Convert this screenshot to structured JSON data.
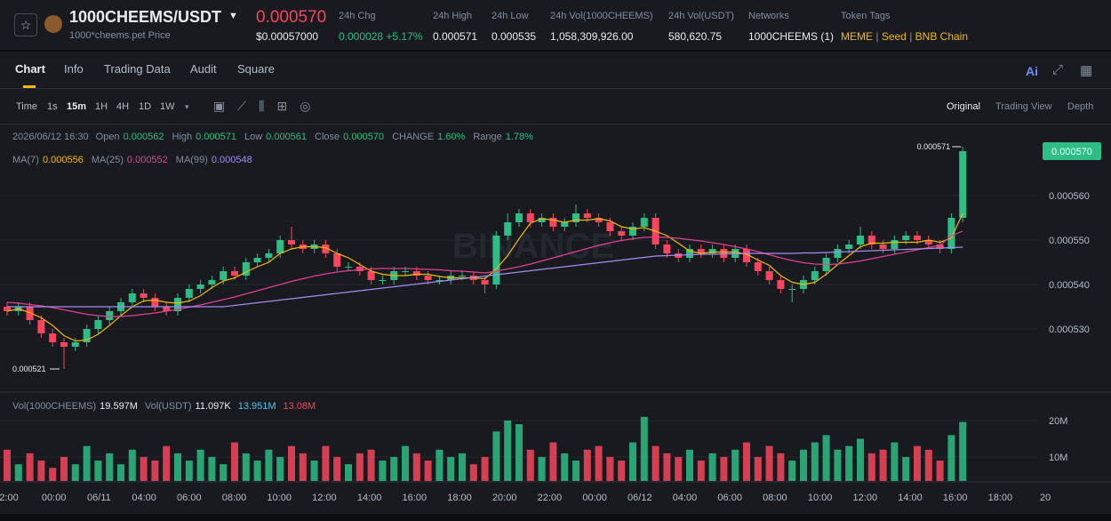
{
  "header": {
    "symbol": "1000CHEEMS/USDT",
    "price": "0.000570",
    "price_usd": "$0.00057000",
    "subtitle": "1000*cheems.pet Price",
    "stats": [
      {
        "label": "24h Chg",
        "value": "0.000028 +5.17%"
      },
      {
        "label": "24h High",
        "value": "0.000571"
      },
      {
        "label": "24h Low",
        "value": "0.000535"
      },
      {
        "label": "24h Vol(1000CHEEMS)",
        "value": "1,058,309,926.00"
      },
      {
        "label": "24h Vol(USDT)",
        "value": "580,620.75"
      },
      {
        "label": "Networks",
        "value": "1000CHEEMS (1)"
      }
    ],
    "token_tags": {
      "label": "Token Tags",
      "tags": [
        "MEME",
        "Seed",
        "BNB Chain"
      ]
    }
  },
  "tabs": [
    "Chart",
    "Info",
    "Trading Data",
    "Audit",
    "Square"
  ],
  "ai": "Ai",
  "toolbar": {
    "intervals": [
      "Time",
      "1s",
      "15m",
      "1H",
      "4H",
      "1D",
      "1W"
    ],
    "views": [
      "Original",
      "Trading View",
      "Depth"
    ]
  },
  "chart_data": [
    {
      "type": "candlestick",
      "watermark": "BINANCE",
      "info": {
        "date": "2026/06/12 16:30",
        "fields": [
          {
            "label": "Open",
            "value": "0.000562"
          },
          {
            "label": "High",
            "value": "0.000571"
          },
          {
            "label": "Low",
            "value": "0.000561"
          },
          {
            "label": "Close",
            "value": "0.000570"
          },
          {
            "label": "CHANGE",
            "value": "1.60%"
          },
          {
            "label": "Range",
            "value": "1.78%"
          }
        ]
      },
      "up_color": "#2ebd85",
      "down_color": "#f6465d",
      "open": [
        0.000535,
        0.000534,
        0.000535,
        0.000532,
        0.000529,
        0.000527,
        0.000526,
        0.000527,
        0.00053,
        0.000532,
        0.000534,
        0.000536,
        0.000538,
        0.000537,
        0.000535,
        0.000534,
        0.000537,
        0.000539,
        0.00054,
        0.000541,
        0.000543,
        0.000542,
        0.000545,
        0.000546,
        0.000547,
        0.00055,
        0.000549,
        0.000548,
        0.000549,
        0.000547,
        0.000544,
        0.000544,
        0.000543,
        0.000541,
        0.000541,
        0.000543,
        0.000543,
        0.000542,
        0.000541,
        0.000541,
        0.000542,
        0.000542,
        0.000541,
        0.00054,
        0.000551,
        0.000554,
        0.000556,
        0.000554,
        0.000555,
        0.000553,
        0.000554,
        0.000556,
        0.000555,
        0.000554,
        0.000552,
        0.000551,
        0.000553,
        0.000555,
        0.000549,
        0.000547,
        0.000546,
        0.000548,
        0.000547,
        0.000548,
        0.000546,
        0.000548,
        0.000545,
        0.000543,
        0.000541,
        0.000539,
        0.000539,
        0.000541,
        0.000543,
        0.000546,
        0.000548,
        0.000549,
        0.000551,
        0.000549,
        0.000548,
        0.00055,
        0.000551,
        0.00055,
        0.000549,
        0.000548,
        0.000555
      ],
      "high": [
        0.000536,
        0.000536,
        0.000536,
        0.000533,
        0.00053,
        0.000528,
        0.000528,
        0.000531,
        0.000533,
        0.000535,
        0.000537,
        0.000539,
        0.000539,
        0.000538,
        0.000536,
        0.000538,
        0.00054,
        0.000541,
        0.000542,
        0.000544,
        0.000544,
        0.000546,
        0.000547,
        0.000548,
        0.000551,
        0.000553,
        0.00055,
        0.00055,
        0.00055,
        0.000548,
        0.000545,
        0.000545,
        0.000544,
        0.000542,
        0.000544,
        0.000544,
        0.000544,
        0.000543,
        0.000542,
        0.000543,
        0.000543,
        0.000543,
        0.000542,
        0.000552,
        0.000556,
        0.000557,
        0.000557,
        0.000556,
        0.000556,
        0.000555,
        0.000558,
        0.000557,
        0.000556,
        0.000555,
        0.000553,
        0.000554,
        0.000556,
        0.000556,
        0.00055,
        0.000548,
        0.000549,
        0.000549,
        0.000549,
        0.000549,
        0.000549,
        0.000549,
        0.000546,
        0.000544,
        0.000542,
        0.00054,
        0.000542,
        0.000544,
        0.000547,
        0.000549,
        0.00055,
        0.000553,
        0.000552,
        0.00055,
        0.000551,
        0.000552,
        0.000552,
        0.000551,
        0.00055,
        0.000556,
        0.000571
      ],
      "low": [
        0.000533,
        0.000533,
        0.000531,
        0.000528,
        0.000526,
        0.000521,
        0.000525,
        0.000526,
        0.000529,
        0.000531,
        0.000533,
        0.000535,
        0.000536,
        0.000534,
        0.000533,
        0.000533,
        0.000536,
        0.000538,
        0.000539,
        0.00054,
        0.000541,
        0.000541,
        0.000544,
        0.000545,
        0.000546,
        0.000548,
        0.000547,
        0.000547,
        0.000546,
        0.000543,
        0.000543,
        0.000542,
        0.00054,
        0.00054,
        0.00054,
        0.000542,
        0.000541,
        0.00054,
        0.00054,
        0.00054,
        0.000541,
        0.00054,
        0.000538,
        0.000539,
        0.00055,
        0.000553,
        0.000553,
        0.000553,
        0.000552,
        0.000552,
        0.000553,
        0.000554,
        0.000553,
        0.000551,
        0.00055,
        0.00055,
        0.000552,
        0.000548,
        0.000546,
        0.000545,
        0.000545,
        0.000546,
        0.000546,
        0.000545,
        0.000545,
        0.000544,
        0.000542,
        0.00054,
        0.000538,
        0.000536,
        0.000538,
        0.00054,
        0.000542,
        0.000545,
        0.000547,
        0.000548,
        0.000548,
        0.000547,
        0.000547,
        0.000549,
        0.000549,
        0.000548,
        0.000547,
        0.000547,
        0.000554
      ],
      "close": [
        0.000534,
        0.000535,
        0.000532,
        0.000529,
        0.000527,
        0.000526,
        0.000527,
        0.00053,
        0.000532,
        0.000534,
        0.000536,
        0.000538,
        0.000537,
        0.000535,
        0.000534,
        0.000537,
        0.000539,
        0.00054,
        0.000541,
        0.000543,
        0.000542,
        0.000545,
        0.000546,
        0.000547,
        0.00055,
        0.000549,
        0.000548,
        0.000549,
        0.000547,
        0.000544,
        0.000544,
        0.000543,
        0.000541,
        0.000541,
        0.000543,
        0.000543,
        0.000542,
        0.000541,
        0.000541,
        0.000542,
        0.000542,
        0.000541,
        0.00054,
        0.000551,
        0.000554,
        0.000556,
        0.000554,
        0.000555,
        0.000553,
        0.000554,
        0.000556,
        0.000555,
        0.000554,
        0.000552,
        0.000551,
        0.000553,
        0.000555,
        0.000549,
        0.000547,
        0.000546,
        0.000548,
        0.000547,
        0.000548,
        0.000546,
        0.000548,
        0.000545,
        0.000543,
        0.000541,
        0.000539,
        0.000539,
        0.000541,
        0.000543,
        0.000546,
        0.000548,
        0.000549,
        0.000551,
        0.000549,
        0.000548,
        0.00055,
        0.000551,
        0.00055,
        0.000549,
        0.000548,
        0.000555,
        0.00057
      ],
      "series": [
        {
          "name": "MA(7)",
          "color": "#f0b90b",
          "value_label": "0.000556",
          "values": [
            0.000534,
            0.0005345,
            0.0005337,
            0.0005325,
            0.0005308,
            0.0005285,
            0.0005273,
            0.0005275,
            0.0005288,
            0.0005308,
            0.000533,
            0.000535,
            0.0005363,
            0.0005365,
            0.000536,
            0.0005358,
            0.0005363,
            0.0005375,
            0.0005393,
            0.0005408,
            0.0005415,
            0.0005428,
            0.000544,
            0.000545,
            0.000547,
            0.000548,
            0.0005485,
            0.0005485,
            0.0005483,
            0.000547,
            0.000546,
            0.0005445,
            0.000543,
            0.0005423,
            0.000542,
            0.000542,
            0.0005423,
            0.0005423,
            0.0005418,
            0.0005415,
            0.0005415,
            0.0005415,
            0.0005413,
            0.0005435,
            0.0005465,
            0.0005503,
            0.0005538,
            0.0005548,
            0.0005545,
            0.000554,
            0.0005545,
            0.0005545,
            0.0005548,
            0.0005543,
            0.000553,
            0.0005525,
            0.0005528,
            0.000552,
            0.000551,
            0.0005493,
            0.0005475,
            0.000547,
            0.0005473,
            0.0005473,
            0.0005473,
            0.0005468,
            0.0005455,
            0.0005443,
            0.000542,
            0.0005405,
            0.00054,
            0.0005405,
            0.0005423,
            0.0005445,
            0.0005465,
            0.0005485,
            0.0005493,
            0.0005493,
            0.0005495,
            0.0005495,
            0.0005495,
            0.00055,
            0.0005495,
            0.0005505,
            0.000556
          ]
        },
        {
          "name": "MA(25)",
          "color": "#e0428f",
          "value_label": "0.000552",
          "values": [
            0.000536,
            0.0005358,
            0.0005355,
            0.0005352,
            0.0005348,
            0.0005343,
            0.0005338,
            0.0005333,
            0.000533,
            0.0005328,
            0.0005328,
            0.000533,
            0.0005333,
            0.0005336,
            0.000534,
            0.0005344,
            0.0005349,
            0.0005354,
            0.000536,
            0.0005366,
            0.0005372,
            0.0005379,
            0.0005386,
            0.0005393,
            0.00054,
            0.0005407,
            0.0005413,
            0.0005419,
            0.0005424,
            0.0005428,
            0.0005431,
            0.0005433,
            0.0005435,
            0.0005436,
            0.0005436,
            0.0005436,
            0.0005435,
            0.0005434,
            0.0005433,
            0.0005431,
            0.000543,
            0.0005428,
            0.0005426,
            0.000543,
            0.0005435,
            0.000544,
            0.0005446,
            0.0005453,
            0.000546,
            0.0005467,
            0.0005474,
            0.0005481,
            0.0005488,
            0.0005494,
            0.0005499,
            0.0005503,
            0.0005506,
            0.0005507,
            0.0005506,
            0.0005504,
            0.0005501,
            0.0005498,
            0.0005494,
            0.000549,
            0.0005485,
            0.000548,
            0.0005474,
            0.0005467,
            0.000546,
            0.0005454,
            0.0005449,
            0.0005446,
            0.0005445,
            0.0005446,
            0.0005449,
            0.0005453,
            0.0005458,
            0.0005463,
            0.0005468,
            0.0005473,
            0.0005478,
            0.0005483,
            0.0005488,
            0.000551,
            0.000552
          ]
        },
        {
          "name": "MA(99)",
          "color": "#a48cf0",
          "value_label": "0.000548",
          "values": [
            0.000535,
            0.000535,
            0.000535,
            0.000535,
            0.000535,
            0.000535,
            0.000535,
            0.000535,
            0.000535,
            0.000535,
            0.000535,
            0.000535,
            0.000535,
            0.000535,
            0.000535,
            0.000535,
            0.000535,
            0.000535,
            0.000535,
            0.000535,
            0.0005353,
            0.0005356,
            0.0005359,
            0.0005362,
            0.0005365,
            0.0005368,
            0.0005371,
            0.0005374,
            0.0005377,
            0.000538,
            0.0005383,
            0.0005386,
            0.0005389,
            0.0005392,
            0.0005395,
            0.0005398,
            0.0005401,
            0.0005404,
            0.0005407,
            0.000541,
            0.0005413,
            0.0005416,
            0.0005419,
            0.0005422,
            0.0005425,
            0.0005428,
            0.0005431,
            0.0005434,
            0.0005437,
            0.000544,
            0.0005443,
            0.0005446,
            0.0005449,
            0.0005452,
            0.0005455,
            0.0005458,
            0.0005461,
            0.0005464,
            0.0005465,
            0.0005466,
            0.0005467,
            0.0005468,
            0.0005468,
            0.0005469,
            0.0005469,
            0.000547,
            0.000547,
            0.000547,
            0.000547,
            0.000547,
            0.0005471,
            0.0005471,
            0.0005472,
            0.0005473,
            0.0005474,
            0.0005475,
            0.0005476,
            0.0005477,
            0.0005478,
            0.0005479,
            0.000548,
            0.0005481,
            0.0005482,
            0.0005483,
            0.0005484
          ]
        }
      ],
      "ylim": [
        0.000516,
        0.000576
      ],
      "yticks": [
        {
          "value": 0.00053,
          "label": "0.000530"
        },
        {
          "value": 0.00054,
          "label": "0.000540"
        },
        {
          "value": 0.00055,
          "label": "0.000550"
        },
        {
          "value": 0.00056,
          "label": "0.000560"
        }
      ],
      "annotations": [
        {
          "value": 0.000571,
          "label": "0.000571"
        },
        {
          "value": 0.000521,
          "label": "0.000521"
        }
      ],
      "last_price": {
        "value": 0.00057,
        "label": "0.000570"
      }
    },
    {
      "type": "bar",
      "title": "Vol(1000CHEEMS)",
      "value_label": "19.597M",
      "usdt_title": "Vol(USDT)",
      "usdt_label": "11.097K",
      "ma_labels": [
        {
          "label": "13.951M",
          "color": "#55c2e8"
        },
        {
          "label": "13.08M",
          "color": "#f6465d"
        }
      ],
      "values": [
        12000000,
        8000000,
        11000000,
        9000000,
        7000000,
        10000000,
        8000000,
        13000000,
        9000000,
        11000000,
        8000000,
        12000000,
        10000000,
        9000000,
        13000000,
        11000000,
        9000000,
        12000000,
        10000000,
        8000000,
        14000000,
        11000000,
        9000000,
        12000000,
        10000000,
        13000000,
        11000000,
        9000000,
        13000000,
        10000000,
        8000000,
        11000000,
        12000000,
        9000000,
        10000000,
        13000000,
        11000000,
        9000000,
        12000000,
        10000000,
        11000000,
        8000000,
        10000000,
        17000000,
        20000000,
        19000000,
        12000000,
        10000000,
        14000000,
        11000000,
        9000000,
        12000000,
        13000000,
        10000000,
        9000000,
        14000000,
        21000000,
        13000000,
        11000000,
        10000000,
        12000000,
        9000000,
        11000000,
        10000000,
        12000000,
        14000000,
        10000000,
        13000000,
        11000000,
        9000000,
        12000000,
        14000000,
        16000000,
        12000000,
        13000000,
        15000000,
        11000000,
        12000000,
        14000000,
        10000000,
        13000000,
        12000000,
        9000000,
        16000000,
        19597000
      ],
      "ylim": [
        3400000,
        26100000
      ],
      "yticks": [
        {
          "value": 10000000,
          "label": "10M"
        },
        {
          "value": 20000000,
          "label": "20M"
        }
      ],
      "x_labels": [
        "2:00",
        "00:00",
        "06/11",
        "04:00",
        "06:00",
        "08:00",
        "10:00",
        "12:00",
        "14:00",
        "16:00",
        "18:00",
        "20:00",
        "22:00",
        "00:00",
        "06/12",
        "04:00",
        "06:00",
        "08:00",
        "10:00",
        "12:00",
        "14:00",
        "16:00",
        "18:00",
        "20"
      ]
    }
  ]
}
